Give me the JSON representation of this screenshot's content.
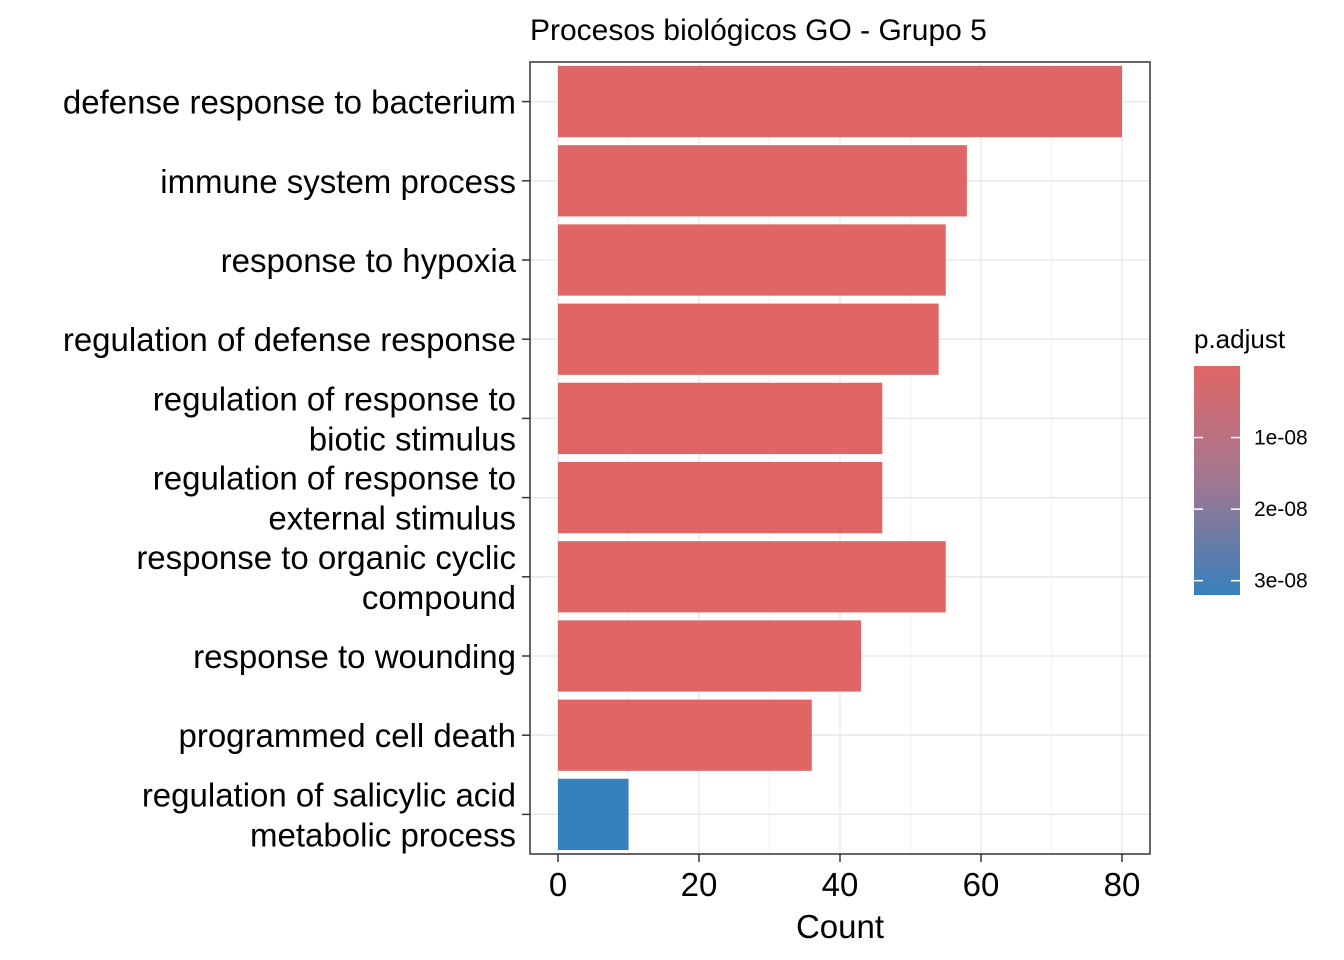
{
  "chart_data": {
    "type": "bar",
    "orientation": "horizontal",
    "title": "Procesos biológicos GO - Grupo 5",
    "xlabel": "Count",
    "ylabel": "",
    "xlim": [
      0,
      82
    ],
    "xticks": [
      0,
      20,
      40,
      60,
      80
    ],
    "grid": true,
    "categories": [
      {
        "label_lines": [
          "defense response to bacterium"
        ],
        "value": 80,
        "color": "#e06666"
      },
      {
        "label_lines": [
          "immune system process"
        ],
        "value": 58,
        "color": "#e06666"
      },
      {
        "label_lines": [
          "response to hypoxia"
        ],
        "value": 55,
        "color": "#e06666"
      },
      {
        "label_lines": [
          "regulation of defense response"
        ],
        "value": 54,
        "color": "#e06666"
      },
      {
        "label_lines": [
          "regulation of response to",
          "biotic stimulus"
        ],
        "value": 46,
        "color": "#e06666"
      },
      {
        "label_lines": [
          "regulation of response to",
          "external stimulus"
        ],
        "value": 46,
        "color": "#e06666"
      },
      {
        "label_lines": [
          "response to organic cyclic",
          "compound"
        ],
        "value": 55,
        "color": "#e06666"
      },
      {
        "label_lines": [
          "response to wounding"
        ],
        "value": 43,
        "color": "#e06666"
      },
      {
        "label_lines": [
          "programmed cell death"
        ],
        "value": 36,
        "color": "#e06666"
      },
      {
        "label_lines": [
          "regulation of salicylic acid",
          "metabolic process"
        ],
        "value": 10,
        "color": "#3680bb"
      }
    ],
    "legend": {
      "title": "p.adjust",
      "placement": "right",
      "type": "colorbar",
      "color_low_value": "#e06666",
      "color_high_value": "#3680bb",
      "range": [
        0,
        3.2e-08
      ],
      "ticks": [
        {
          "value": 1e-08,
          "label": "1e-08"
        },
        {
          "value": 2e-08,
          "label": "2e-08"
        },
        {
          "value": 3e-08,
          "label": "3e-08"
        }
      ]
    }
  }
}
